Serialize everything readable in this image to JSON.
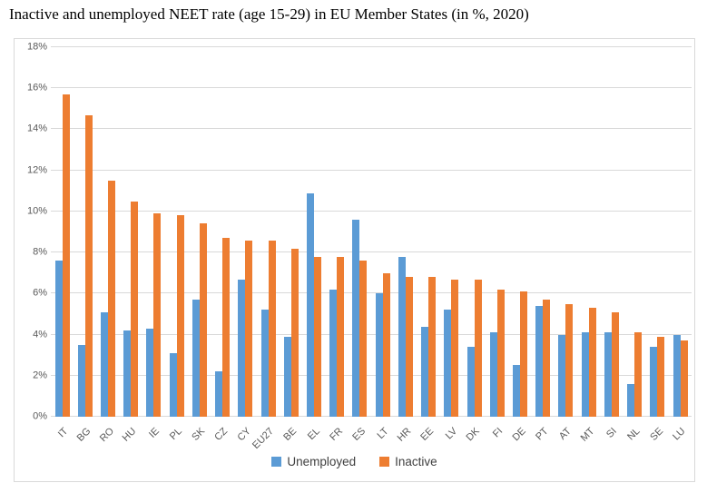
{
  "page": {
    "title": "Inactive and unemployed NEET rate (age 15-29) in EU Member States (in %, 2020)"
  },
  "chart_data": {
    "type": "bar",
    "title": "Inactive and unemployed NEET rate (age 15-29) in EU Member States (in %, 2020)",
    "categories": [
      "IT",
      "BG",
      "RO",
      "HU",
      "IE",
      "PL",
      "SK",
      "CZ",
      "CY",
      "EU27",
      "BE",
      "EL",
      "FR",
      "ES",
      "LT",
      "HR",
      "EE",
      "LV",
      "DK",
      "FI",
      "DE",
      "PT",
      "AT",
      "MT",
      "SI",
      "NL",
      "SE",
      "LU"
    ],
    "series": [
      {
        "name": "Unemployed",
        "color": "#5B9BD5",
        "values": [
          7.6,
          3.5,
          5.1,
          4.2,
          4.3,
          3.1,
          5.7,
          2.2,
          6.7,
          5.2,
          3.9,
          10.9,
          6.2,
          9.6,
          6.0,
          7.8,
          4.4,
          5.2,
          3.4,
          4.1,
          2.5,
          5.4,
          4.0,
          4.1,
          4.1,
          1.6,
          3.4,
          4.0
        ]
      },
      {
        "name": "Inactive",
        "color": "#ED7D31",
        "values": [
          15.7,
          14.7,
          11.5,
          10.5,
          9.9,
          9.8,
          9.4,
          8.7,
          8.6,
          8.6,
          8.2,
          7.8,
          7.8,
          7.6,
          7.0,
          6.8,
          6.8,
          6.7,
          6.7,
          6.2,
          6.1,
          5.7,
          5.5,
          5.3,
          5.1,
          4.1,
          3.9,
          3.7
        ]
      }
    ],
    "xlabel": "",
    "ylabel": "",
    "ylim": [
      0,
      18
    ],
    "ytick_step": 2,
    "ytick_suffix": "%",
    "grid": true,
    "legend_position": "bottom",
    "colors": {
      "gridline": "#D9D9D9",
      "axis_text": "#595959",
      "chart_border": "#D9D9D9",
      "legend_text": "#404040",
      "title_text": "#000000"
    }
  }
}
